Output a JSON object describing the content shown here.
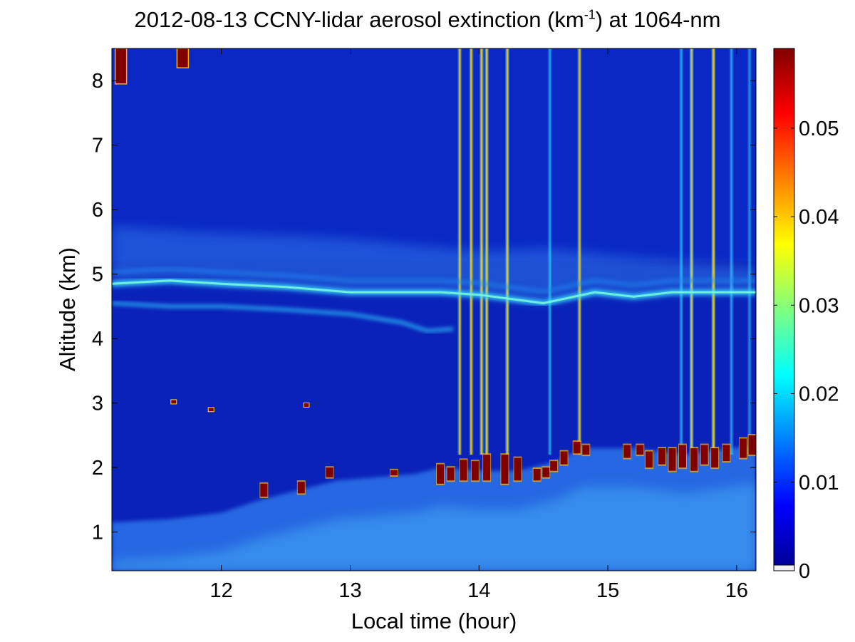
{
  "chart_data": {
    "type": "heatmap",
    "title": {
      "prefix": "2012-08-13 CCNY-lidar aerosol extinction (km",
      "sup": "-1",
      "suffix": ") at 1064-nm"
    },
    "xlabel": "Local time (hour)",
    "ylabel": "Altitude (km)",
    "xlim": [
      11.15,
      16.15
    ],
    "ylim": [
      0.4,
      8.5
    ],
    "xticks": [
      12,
      13,
      14,
      15,
      16
    ],
    "yticks": [
      1,
      2,
      3,
      4,
      5,
      6,
      7,
      8
    ],
    "colorbar": {
      "range": [
        0,
        0.059
      ],
      "ticks": [
        0,
        0.01,
        0.02,
        0.03,
        0.04,
        0.05
      ],
      "tick_labels": [
        "0",
        "0.01",
        "0.02",
        "0.03",
        "0.04",
        "0.05"
      ],
      "colormap": "jet"
    },
    "features": {
      "aerosol_layer_upper": [
        [
          11.15,
          4.85
        ],
        [
          11.6,
          4.9
        ],
        [
          12.0,
          4.85
        ],
        [
          12.5,
          4.8
        ],
        [
          13.0,
          4.72
        ],
        [
          13.3,
          4.72
        ],
        [
          13.7,
          4.72
        ],
        [
          14.0,
          4.68
        ],
        [
          14.5,
          4.55
        ],
        [
          14.9,
          4.72
        ],
        [
          15.2,
          4.65
        ],
        [
          15.5,
          4.72
        ],
        [
          16.15,
          4.72
        ]
      ],
      "aerosol_layer_lower": [
        [
          11.15,
          4.55
        ],
        [
          11.6,
          4.5
        ],
        [
          12.0,
          4.5
        ],
        [
          12.5,
          4.45
        ],
        [
          13.0,
          4.38
        ],
        [
          13.4,
          4.25
        ],
        [
          13.6,
          4.12
        ],
        [
          13.8,
          4.15
        ]
      ],
      "diffuse_layer_top": [
        [
          11.15,
          5.75
        ],
        [
          11.8,
          5.65
        ],
        [
          12.5,
          5.6
        ],
        [
          13.0,
          5.55
        ],
        [
          13.5,
          5.45
        ],
        [
          14.0,
          5.35
        ],
        [
          14.5,
          5.4
        ],
        [
          15.0,
          5.3
        ],
        [
          16.15,
          5.1
        ]
      ],
      "boundary_layer_top": [
        [
          11.15,
          1.15
        ],
        [
          11.6,
          1.2
        ],
        [
          12.0,
          1.3
        ],
        [
          12.3,
          1.5
        ],
        [
          12.6,
          1.65
        ],
        [
          12.9,
          1.8
        ],
        [
          13.2,
          1.85
        ],
        [
          13.5,
          1.9
        ],
        [
          13.7,
          2.0
        ],
        [
          14.0,
          1.95
        ],
        [
          14.3,
          1.95
        ],
        [
          14.6,
          2.1
        ],
        [
          14.8,
          2.3
        ],
        [
          15.2,
          2.3
        ],
        [
          15.6,
          2.2
        ],
        [
          16.15,
          2.35
        ]
      ],
      "cloud_base_cells": [
        [
          12.33,
          1.55,
          1.75
        ],
        [
          12.62,
          1.6,
          1.78
        ],
        [
          12.84,
          1.85,
          2.0
        ],
        [
          13.34,
          1.88,
          1.96
        ],
        [
          13.7,
          1.75,
          2.05
        ],
        [
          13.78,
          1.8,
          2.0
        ],
        [
          13.88,
          1.8,
          2.12
        ],
        [
          13.97,
          1.8,
          2.1
        ],
        [
          14.06,
          1.8,
          2.2
        ],
        [
          14.2,
          1.75,
          2.2
        ],
        [
          14.3,
          1.8,
          2.15
        ],
        [
          14.45,
          1.8,
          1.98
        ],
        [
          14.52,
          1.85,
          2.0
        ],
        [
          14.58,
          1.95,
          2.1
        ],
        [
          14.66,
          2.05,
          2.25
        ],
        [
          14.76,
          2.22,
          2.4
        ],
        [
          14.83,
          2.2,
          2.35
        ],
        [
          15.15,
          2.15,
          2.35
        ],
        [
          15.25,
          2.2,
          2.35
        ],
        [
          15.32,
          2.0,
          2.25
        ],
        [
          15.42,
          2.05,
          2.3
        ],
        [
          15.5,
          1.95,
          2.3
        ],
        [
          15.58,
          2.0,
          2.35
        ],
        [
          15.67,
          1.95,
          2.3
        ],
        [
          15.75,
          2.05,
          2.35
        ],
        [
          15.83,
          2.0,
          2.3
        ],
        [
          15.92,
          2.1,
          2.35
        ],
        [
          16.05,
          2.15,
          2.45
        ],
        [
          16.12,
          2.2,
          2.5
        ]
      ],
      "cirrus_cells": [
        [
          11.22,
          7.95,
          8.5
        ],
        [
          11.7,
          8.2,
          8.5
        ]
      ],
      "isolated_clouds": [
        [
          11.63,
          3.02
        ],
        [
          11.92,
          2.9
        ],
        [
          12.66,
          2.97
        ]
      ],
      "vertical_streaks": [
        [
          13.85,
          0.9
        ],
        [
          13.94,
          0.9
        ],
        [
          14.02,
          1.0
        ],
        [
          14.06,
          1.0
        ],
        [
          14.22,
          1.0
        ],
        [
          14.55,
          0.6
        ],
        [
          14.78,
          0.9
        ],
        [
          15.57,
          0.6
        ],
        [
          15.65,
          1.0
        ],
        [
          15.82,
          1.0
        ],
        [
          15.96,
          0.6
        ],
        [
          16.1,
          0.5
        ]
      ]
    }
  }
}
